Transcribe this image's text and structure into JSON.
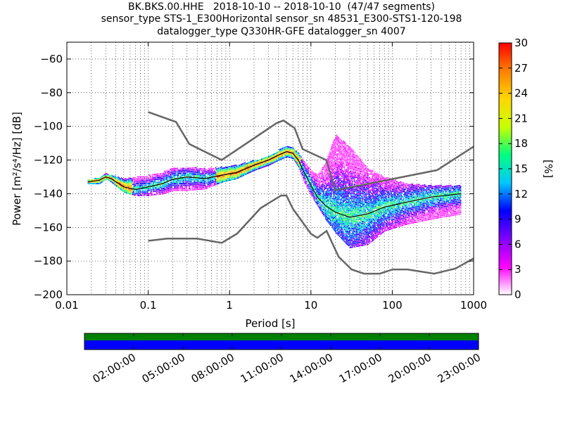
{
  "title_lines": [
    "BK.BKS.00.HHE   2018-10-10 -- 2018-10-10  (47/47 segments)",
    "sensor_type STS-1_E300Horizontal sensor_sn 48531_E300-STS1-120-198",
    "datalogger_type Q330HR-GFE datalogger_sn 4007"
  ],
  "chart_data": [
    {
      "type": "heatmap",
      "xlabel": "Period [s]",
      "ylabel": "Power [m²/s⁴/Hz] [dB]",
      "xscale": "log",
      "xlim": [
        0.01,
        1000
      ],
      "ylim": [
        -200,
        -50
      ],
      "x_ticks": [
        "0.01",
        "0.1",
        "1",
        "10",
        "100",
        "1000"
      ],
      "y_ticks": [
        "−200",
        "−180",
        "−160",
        "−140",
        "−120",
        "−100",
        "−80",
        "−60"
      ],
      "grid": "dotted",
      "colorbar": {
        "label": "[%]",
        "range": [
          0,
          30
        ],
        "ticks": [
          "0",
          "3",
          "6",
          "9",
          "12",
          "15",
          "18",
          "21",
          "24",
          "27",
          "30"
        ],
        "colormap": [
          "#ffffff",
          "#ff00ff",
          "#8000ff",
          "#0000ff",
          "#00c8ff",
          "#00ff80",
          "#c8ff00",
          "#ffd700",
          "#ff8000",
          "#ff0000"
        ]
      },
      "noise_models": [
        {
          "name": "NHNM",
          "points": [
            [
              0.1,
              -91.5
            ],
            [
              0.22,
              -97.4
            ],
            [
              0.32,
              -110.5
            ],
            [
              0.8,
              -120
            ],
            [
              3.8,
              -98
            ],
            [
              4.6,
              -96.5
            ],
            [
              6.3,
              -101
            ],
            [
              7.9,
              -113.5
            ],
            [
              15.4,
              -120
            ],
            [
              20,
              -138
            ],
            [
              354.8,
              -126
            ],
            [
              1000,
              -112
            ]
          ]
        },
        {
          "name": "NLNM",
          "points": [
            [
              0.1,
              -168
            ],
            [
              0.17,
              -166.7
            ],
            [
              0.4,
              -166.7
            ],
            [
              0.8,
              -169.2
            ],
            [
              1.24,
              -163.7
            ],
            [
              2.4,
              -148.6
            ],
            [
              4.3,
              -141.1
            ],
            [
              5,
              -141.1
            ],
            [
              6,
              -149
            ],
            [
              10,
              -163.8
            ],
            [
              12,
              -166.2
            ],
            [
              15.6,
              -162.1
            ],
            [
              21.9,
              -177.5
            ],
            [
              31.6,
              -185
            ],
            [
              45,
              -187.5
            ],
            [
              70,
              -187.5
            ],
            [
              101,
              -185
            ],
            [
              154,
              -185
            ],
            [
              328,
              -187.5
            ],
            [
              600,
              -184.4
            ],
            [
              1000,
              -178.5
            ]
          ]
        }
      ],
      "median_psd": [
        [
          0.018,
          -133
        ],
        [
          0.025,
          -132
        ],
        [
          0.03,
          -130
        ],
        [
          0.035,
          -131
        ],
        [
          0.05,
          -136
        ],
        [
          0.07,
          -137.5
        ],
        [
          0.1,
          -136
        ],
        [
          0.15,
          -134
        ],
        [
          0.2,
          -131.5
        ],
        [
          0.3,
          -130
        ],
        [
          0.5,
          -131
        ],
        [
          0.8,
          -129
        ],
        [
          1.2,
          -127.5
        ],
        [
          2,
          -123
        ],
        [
          3,
          -120
        ],
        [
          4,
          -117
        ],
        [
          5,
          -115
        ],
        [
          6,
          -116
        ],
        [
          7,
          -120
        ],
        [
          8,
          -126
        ],
        [
          10,
          -135
        ],
        [
          12,
          -142
        ],
        [
          15,
          -147
        ],
        [
          20,
          -151
        ],
        [
          30,
          -154
        ],
        [
          50,
          -152
        ],
        [
          80,
          -148
        ],
        [
          150,
          -145
        ],
        [
          300,
          -142
        ],
        [
          700,
          -140
        ]
      ],
      "psd_spread": [
        [
          0.018,
          -134,
          -132
        ],
        [
          0.025,
          -134,
          -130
        ],
        [
          0.03,
          -131,
          -128
        ],
        [
          0.035,
          -133,
          -129
        ],
        [
          0.05,
          -139,
          -131
        ],
        [
          0.07,
          -141,
          -130
        ],
        [
          0.1,
          -141,
          -129
        ],
        [
          0.15,
          -140,
          -127
        ],
        [
          0.2,
          -138,
          -125
        ],
        [
          0.3,
          -138,
          -124
        ],
        [
          0.5,
          -137,
          -125
        ],
        [
          0.8,
          -133,
          -124
        ],
        [
          1.2,
          -131,
          -123
        ],
        [
          2,
          -126,
          -120
        ],
        [
          3,
          -123,
          -118
        ],
        [
          4,
          -120,
          -114
        ],
        [
          5,
          -118,
          -112
        ],
        [
          6,
          -119,
          -113
        ],
        [
          7,
          -124,
          -116
        ],
        [
          8,
          -132,
          -120
        ],
        [
          10,
          -141,
          -126
        ],
        [
          12,
          -147,
          -129
        ],
        [
          15,
          -155,
          -121
        ],
        [
          20,
          -163,
          -105
        ],
        [
          30,
          -172,
          -112
        ],
        [
          50,
          -170,
          -125
        ],
        [
          80,
          -162,
          -130
        ],
        [
          150,
          -158,
          -134
        ],
        [
          300,
          -155,
          -135
        ],
        [
          700,
          -152,
          -135
        ]
      ],
      "median_label": ""
    },
    {
      "type": "timeline",
      "tick_labels": [
        "02:00:00",
        "05:00:00",
        "08:00:00",
        "11:00:00",
        "14:00:00",
        "17:00:00",
        "20:00:00",
        "23:00:00"
      ],
      "tick_hours": [
        2,
        5,
        8,
        11,
        14,
        17,
        20,
        23
      ],
      "range_hours": [
        -1,
        23
      ],
      "bars": [
        {
          "color": "#008000"
        },
        {
          "color": "#0000ff"
        }
      ]
    }
  ]
}
